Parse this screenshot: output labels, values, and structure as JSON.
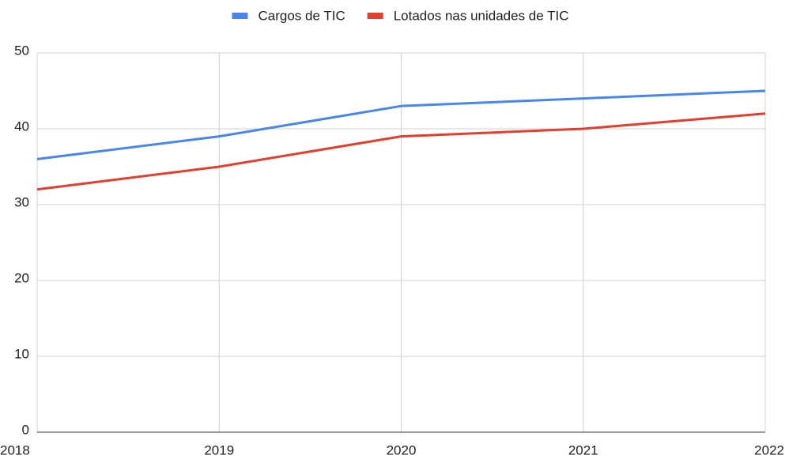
{
  "chart_data": {
    "type": "line",
    "x": [
      2018,
      2019,
      2020,
      2021,
      2022
    ],
    "series": [
      {
        "name": "Cargos de TIC",
        "color": "#4a86e8",
        "values": [
          36,
          39,
          43,
          44,
          45
        ]
      },
      {
        "name": "Lotados nas unidades de TIC",
        "color": "#e0402f",
        "values": [
          32,
          35,
          39,
          40,
          42
        ]
      }
    ],
    "xlim": [
      2018,
      2022
    ],
    "xticks": [
      2018,
      2019,
      2020,
      2021,
      2022
    ],
    "ylim": [
      0,
      50
    ],
    "yticks": [
      0,
      10,
      20,
      30,
      40,
      50
    ],
    "grid": true,
    "legend": "top"
  }
}
